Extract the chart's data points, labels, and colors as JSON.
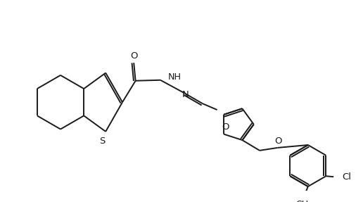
{
  "bg_color": "#ffffff",
  "bond_color": "#1a1a1a",
  "label_color": "#1a1a1a",
  "figsize": [
    5.16,
    2.87
  ],
  "dpi": 100,
  "line_width": 1.4,
  "xlim": [
    0,
    10.5
  ],
  "ylim": [
    0,
    5.5
  ]
}
